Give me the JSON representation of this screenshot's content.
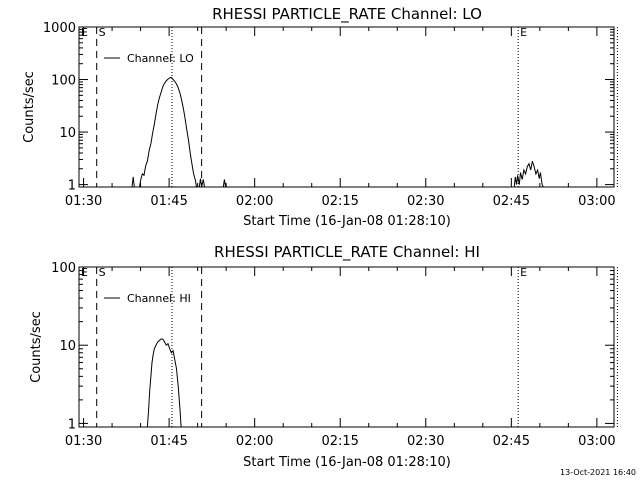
{
  "footer_timestamp": "13-Oct-2021 16:40",
  "chart_data": [
    {
      "type": "line",
      "title": "RHESSI PARTICLE_RATE Channel: LO",
      "xlabel": "Start Time (16-Jan-08 01:28:10)",
      "ylabel": "Counts/sec",
      "yscale": "log",
      "ylim": [
        0.9,
        1000
      ],
      "xlim": [
        1.2,
        95
      ],
      "xticks": [
        {
          "t": 2,
          "label": "01:30"
        },
        {
          "t": 17,
          "label": "01:45"
        },
        {
          "t": 32,
          "label": "02:00"
        },
        {
          "t": 47,
          "label": "02:15"
        },
        {
          "t": 62,
          "label": "02:30"
        },
        {
          "t": 77,
          "label": "02:45"
        },
        {
          "t": 92,
          "label": "03:00"
        }
      ],
      "yticks": [
        {
          "v": 1,
          "label": "1"
        },
        {
          "v": 10,
          "label": "10"
        },
        {
          "v": 100,
          "label": "100"
        },
        {
          "v": 1000,
          "label": "1000"
        }
      ],
      "legend": "Channel: LO",
      "markers": [
        {
          "t": 4.3,
          "label": "S",
          "style": "dashed"
        },
        {
          "t": 22.7,
          "label": "",
          "style": "dashed"
        },
        {
          "t": 17.5,
          "label": "",
          "style": "dotted"
        },
        {
          "t": 78.2,
          "label": "E",
          "style": "dotted"
        },
        {
          "t": 95.6,
          "label": "",
          "style": "dotted"
        }
      ],
      "series": [
        {
          "name": "LO",
          "segments": [
            [
              [
                10.5,
                0.9
              ],
              [
                10.7,
                1.4
              ],
              [
                10.9,
                0.9
              ]
            ],
            [
              [
                11.8,
                0.9
              ],
              [
                12.0,
                1.2
              ],
              [
                12.3,
                1.6
              ],
              [
                12.6,
                1.5
              ],
              [
                12.9,
                2.3
              ],
              [
                13.2,
                2.8
              ],
              [
                13.5,
                4.5
              ],
              [
                13.8,
                6
              ],
              [
                14.1,
                9.5
              ],
              [
                14.4,
                14
              ],
              [
                14.7,
                22
              ],
              [
                15.0,
                33
              ],
              [
                15.3,
                45
              ],
              [
                15.6,
                57
              ],
              [
                15.9,
                73
              ],
              [
                16.2,
                85
              ],
              [
                16.5,
                95
              ],
              [
                16.8,
                102
              ],
              [
                17.1,
                108
              ],
              [
                17.4,
                110
              ],
              [
                17.7,
                100
              ],
              [
                18.0,
                92
              ],
              [
                18.3,
                82
              ],
              [
                18.6,
                70
              ],
              [
                18.9,
                55
              ],
              [
                19.2,
                40
              ],
              [
                19.5,
                28
              ],
              [
                19.8,
                18
              ],
              [
                20.1,
                11
              ],
              [
                20.4,
                7
              ],
              [
                20.7,
                4
              ],
              [
                21.0,
                2.5
              ],
              [
                21.3,
                1.6
              ],
              [
                21.6,
                1.2
              ],
              [
                21.8,
                0.9
              ]
            ],
            [
              [
                22.3,
                0.9
              ],
              [
                22.5,
                1.3
              ],
              [
                22.7,
                0.9
              ],
              [
                23.0,
                1.25
              ],
              [
                23.2,
                0.9
              ]
            ],
            [
              [
                26.5,
                0.9
              ],
              [
                26.7,
                1.25
              ],
              [
                26.9,
                0.9
              ]
            ],
            [
              [
                77.5,
                0.9
              ],
              [
                77.7,
                1.4
              ],
              [
                77.9,
                1.0
              ],
              [
                78.1,
                1.5
              ],
              [
                78.4,
                1.0
              ],
              [
                78.6,
                1.7
              ],
              [
                78.9,
                1.25
              ],
              [
                79.2,
                1.9
              ],
              [
                79.5,
                1.6
              ],
              [
                79.8,
                2.2
              ],
              [
                80.1,
                2.5
              ],
              [
                80.4,
                1.9
              ],
              [
                80.7,
                2.8
              ],
              [
                81.0,
                2.2
              ],
              [
                81.3,
                1.6
              ],
              [
                81.6,
                1.9
              ],
              [
                81.9,
                1.3
              ],
              [
                82.1,
                1.7
              ],
              [
                82.4,
                1.0
              ],
              [
                82.6,
                0.9
              ]
            ]
          ]
        }
      ]
    },
    {
      "type": "line",
      "title": "RHESSI PARTICLE_RATE Channel: HI",
      "xlabel": "Start Time (16-Jan-08 01:28:10)",
      "ylabel": "Counts/sec",
      "yscale": "log",
      "ylim": [
        0.9,
        100
      ],
      "xlim": [
        1.2,
        95
      ],
      "xticks": [
        {
          "t": 2,
          "label": "01:30"
        },
        {
          "t": 17,
          "label": "01:45"
        },
        {
          "t": 32,
          "label": "02:00"
        },
        {
          "t": 47,
          "label": "02:15"
        },
        {
          "t": 62,
          "label": "02:30"
        },
        {
          "t": 77,
          "label": "02:45"
        },
        {
          "t": 92,
          "label": "03:00"
        }
      ],
      "yticks": [
        {
          "v": 1,
          "label": "1"
        },
        {
          "v": 10,
          "label": "10"
        },
        {
          "v": 100,
          "label": "100"
        }
      ],
      "legend": "Channel: HI",
      "markers": [
        {
          "t": 4.3,
          "label": "S",
          "style": "dashed"
        },
        {
          "t": 22.7,
          "label": "",
          "style": "dashed"
        },
        {
          "t": 17.5,
          "label": "",
          "style": "dotted"
        },
        {
          "t": 78.2,
          "label": "E",
          "style": "dotted"
        },
        {
          "t": 95.6,
          "label": "",
          "style": "dotted"
        }
      ],
      "series": [
        {
          "name": "HI",
          "segments": [
            [
              [
                13.2,
                0.9
              ],
              [
                13.4,
                1.5
              ],
              [
                13.6,
                2.6
              ],
              [
                13.8,
                4
              ],
              [
                14.0,
                6
              ],
              [
                14.2,
                7.5
              ],
              [
                14.4,
                9
              ],
              [
                14.7,
                10
              ],
              [
                15.0,
                11
              ],
              [
                15.3,
                11.5
              ],
              [
                15.6,
                12
              ],
              [
                15.9,
                12
              ],
              [
                16.2,
                11
              ],
              [
                16.5,
                10
              ],
              [
                16.8,
                10.5
              ],
              [
                17.1,
                9
              ],
              [
                17.4,
                8
              ],
              [
                17.7,
                8.5
              ],
              [
                18.0,
                6.5
              ],
              [
                18.3,
                5
              ],
              [
                18.6,
                3
              ],
              [
                18.9,
                1.5
              ],
              [
                19.1,
                0.9
              ]
            ]
          ]
        }
      ]
    }
  ]
}
